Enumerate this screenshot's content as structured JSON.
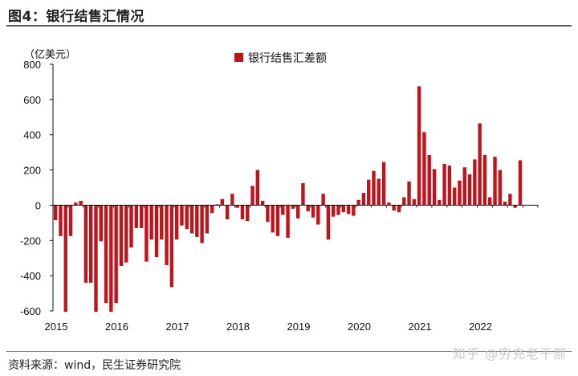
{
  "figure": {
    "title": "图4：银行结售汇情况",
    "source": "资料来源：wind，民生证券研究院",
    "watermark": "知乎 @穷充老干部"
  },
  "colors": {
    "bar": "#c0141c",
    "axis": "#111111",
    "rule": "#555555"
  },
  "chart_data": {
    "type": "bar",
    "title": "银行结售汇情况",
    "ylabel": "（亿美元）",
    "xlabel": "",
    "ylim": [
      -600,
      800
    ],
    "yticks": [
      -600,
      -400,
      -200,
      0,
      200,
      400,
      600,
      800
    ],
    "legend": {
      "label": "银行结售汇差额",
      "position": "top-center"
    },
    "x_start": "2015-01",
    "x_tick_labels": [
      "2015",
      "2016",
      "2017",
      "2018",
      "2019",
      "2020",
      "2021",
      "2022"
    ],
    "grid": false,
    "series": [
      {
        "name": "银行结售汇差额",
        "values": [
          -85,
          -175,
          -605,
          -175,
          15,
          25,
          -440,
          -440,
          -605,
          -205,
          -555,
          -605,
          -555,
          -345,
          -325,
          -240,
          -130,
          -130,
          -320,
          -195,
          -295,
          -195,
          -340,
          -465,
          -195,
          -115,
          -135,
          -160,
          -180,
          -215,
          -160,
          -45,
          5,
          35,
          -80,
          65,
          -15,
          -80,
          -90,
          110,
          200,
          25,
          -95,
          -155,
          -175,
          -55,
          -185,
          -20,
          -75,
          125,
          -35,
          -70,
          -110,
          65,
          -195,
          -65,
          -55,
          -40,
          -50,
          -60,
          30,
          70,
          145,
          195,
          150,
          245,
          15,
          -30,
          -40,
          45,
          135,
          35,
          675,
          415,
          285,
          205,
          30,
          235,
          225,
          100,
          140,
          215,
          175,
          260,
          465,
          285,
          45,
          275,
          200,
          20,
          65,
          -15,
          255
        ]
      }
    ]
  }
}
